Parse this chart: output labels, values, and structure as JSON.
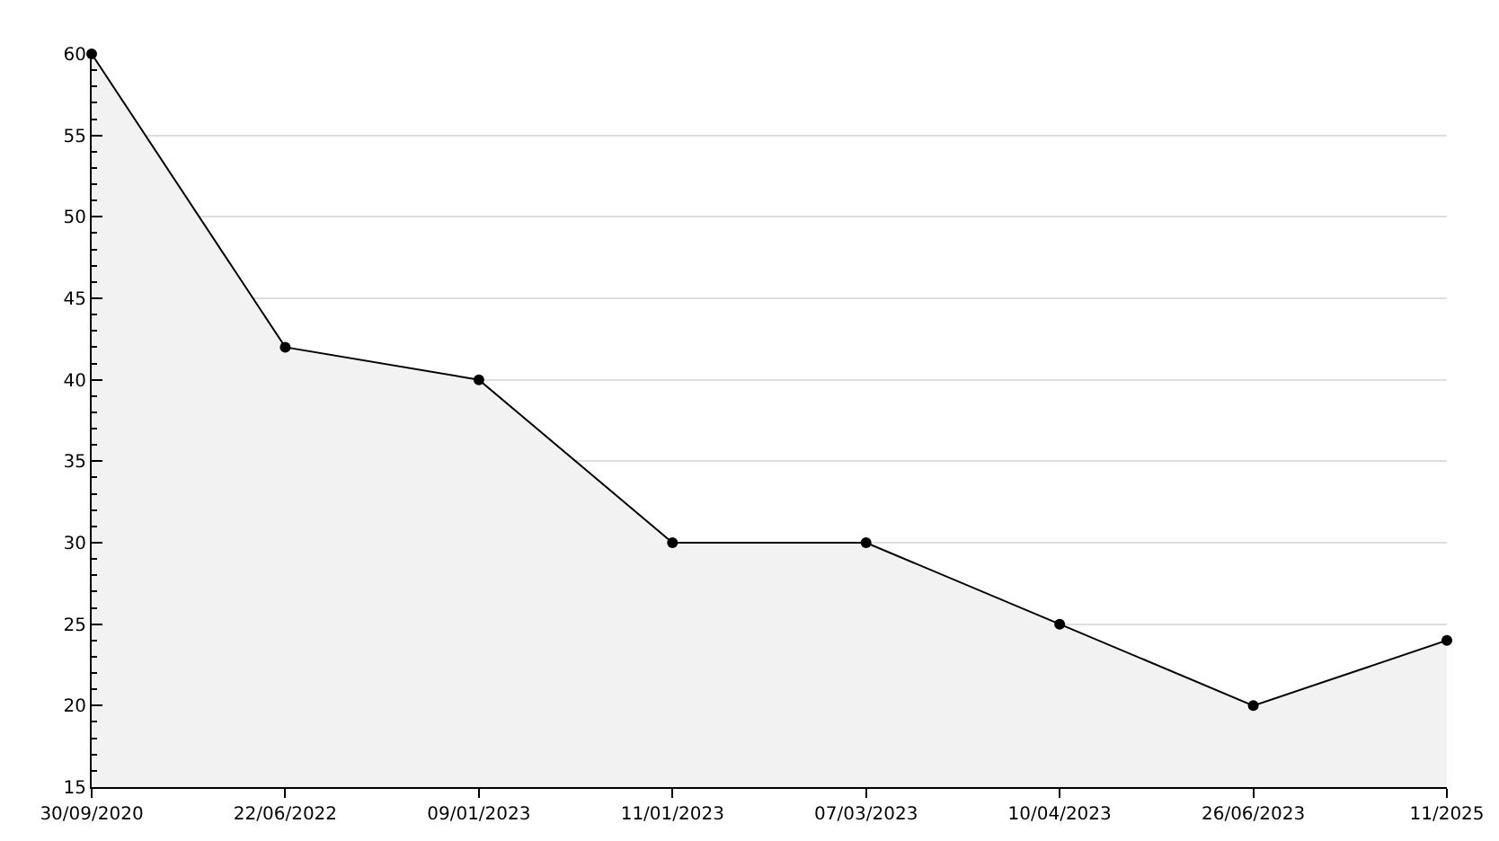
{
  "chart_data": {
    "type": "area",
    "categories": [
      "30/09/2020",
      "22/06/2022",
      "09/01/2023",
      "11/01/2023",
      "07/03/2023",
      "10/04/2023",
      "26/06/2023",
      "11/2025"
    ],
    "series": [
      {
        "color": "#000000",
        "values": [
          60,
          42,
          40,
          30,
          30,
          25,
          20,
          24
        ]
      }
    ],
    "ylim": [
      15,
      60
    ],
    "yticks": [
      15,
      20,
      25,
      30,
      35,
      40,
      45,
      50,
      55,
      60
    ],
    "grid": "y",
    "marker": "circle",
    "line_style": "solid"
  }
}
